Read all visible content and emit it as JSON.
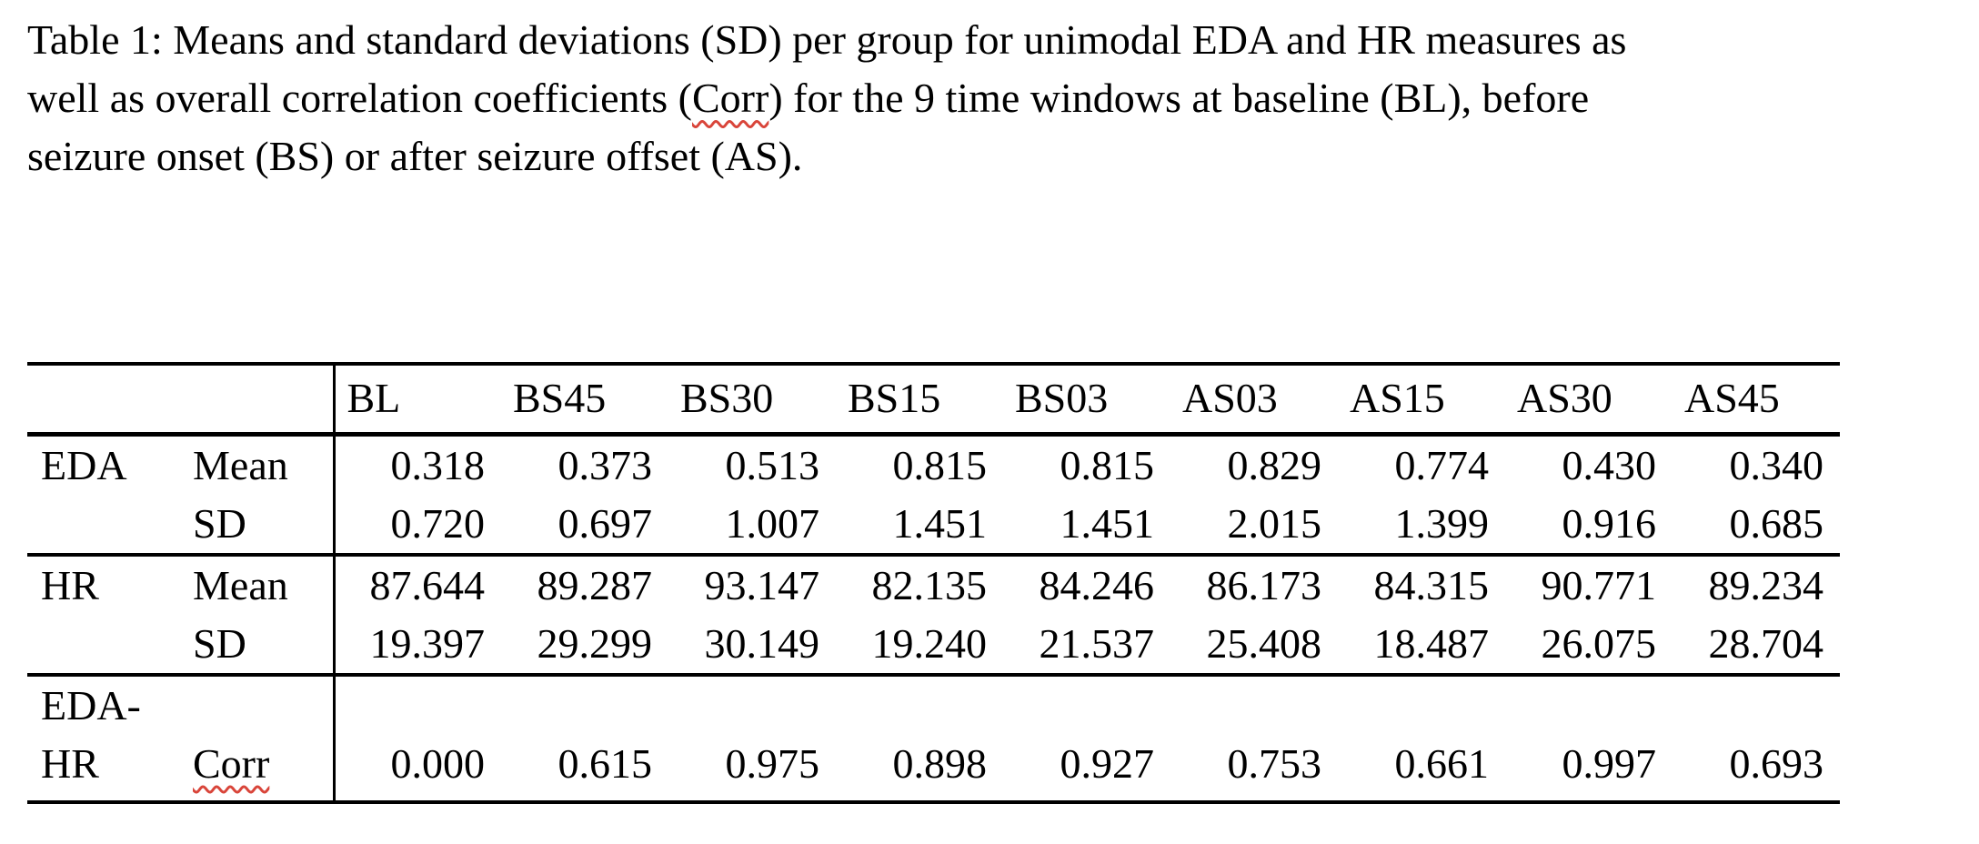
{
  "page": {
    "background": "#ffffff",
    "text_color": "#000000",
    "spellcheck_underline_color": "#d9453a"
  },
  "caption": {
    "line1": "Table 1: Means and standard deviations (SD) per group for unimodal EDA and HR measures as",
    "line2_before": "well as overall correlation coefficients (",
    "corr_word": "Corr",
    "line2_after": ") for the 9 time windows at baseline (BL), before",
    "line3": "seizure onset (BS) or after seizure offset (AS)."
  },
  "table": {
    "columns": [
      "BL",
      "BS45",
      "BS30",
      "BS15",
      "BS03",
      "AS03",
      "AS15",
      "AS30",
      "AS45"
    ],
    "rows": [
      {
        "group": "EDA",
        "stat": "Mean",
        "values": [
          "0.318",
          "0.373",
          "0.513",
          "0.815",
          "0.815",
          "0.829",
          "0.774",
          "0.430",
          "0.340"
        ]
      },
      {
        "group": "",
        "stat": "SD",
        "values": [
          "0.720",
          "0.697",
          "1.007",
          "1.451",
          "1.451",
          "2.015",
          "1.399",
          "0.916",
          "0.685"
        ]
      },
      {
        "group": "HR",
        "stat": "Mean",
        "values": [
          "87.644",
          "89.287",
          "93.147",
          "82.135",
          "84.246",
          "86.173",
          "84.315",
          "90.771",
          "89.234"
        ]
      },
      {
        "group": "",
        "stat": "SD",
        "values": [
          "19.397",
          "29.299",
          "30.149",
          "19.240",
          "21.537",
          "25.408",
          "18.487",
          "26.075",
          "28.704"
        ]
      },
      {
        "group": "EDA-HR",
        "stat": "Corr",
        "values": [
          "0.000",
          "0.615",
          "0.975",
          "0.898",
          "0.927",
          "0.753",
          "0.661",
          "0.997",
          "0.693"
        ]
      }
    ]
  }
}
